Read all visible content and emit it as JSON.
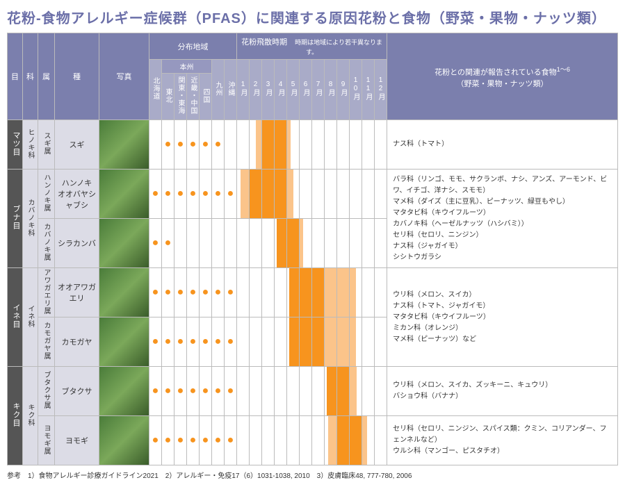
{
  "title": "花粉-食物アレルギー症候群（PFAS）に関連する原因花粉と食物（野菜・果物・ナッツ類）",
  "headers": {
    "moku": "目",
    "ka": "科",
    "zoku": "属",
    "shu": "種",
    "photo": "写真",
    "region": "分布地域",
    "honshu": "本州",
    "season": "花粉飛散時期",
    "seasonNote": "時期は地域により若干異なります。",
    "food": "花粉との関連が報告されている食物",
    "foodSub": "（野菜・果物・ナッツ類）"
  },
  "regions": [
    "北海道",
    "東北",
    "関東・東海",
    "近畿・中国",
    "四国",
    "九州",
    "沖縄"
  ],
  "months": [
    "1月",
    "2月",
    "3月",
    "4月",
    "5月",
    "6月",
    "7月",
    "8月",
    "9月",
    "10月",
    "11月",
    "12月"
  ],
  "colors": {
    "peak": "#f7941e",
    "light": "#fbc48a",
    "hdr1": "#7b7fad",
    "hdr2": "#a9abc8"
  },
  "groups": [
    {
      "moku": "マツ目",
      "ka": "ヒノキ科",
      "rows": [
        {
          "zoku": "スギ属",
          "shu": "スギ",
          "dots": [
            0,
            1,
            1,
            1,
            1,
            1,
            0
          ],
          "cal": [
            null,
            {
              "c": "light",
              "s": 50,
              "e": 100
            },
            {
              "c": "peak",
              "s": 0,
              "e": 100
            },
            {
              "c": "peak",
              "s": 0,
              "e": 100
            },
            {
              "c": "light",
              "s": 0,
              "e": 30
            },
            null,
            null,
            null,
            null,
            null,
            null,
            null
          ]
        }
      ],
      "food": "ナス科（トマト）"
    },
    {
      "moku": "ブナ目",
      "ka": "カバノキ科",
      "rows": [
        {
          "zoku": "ハンノキ属",
          "shu": "ハンノキ\nオオバヤシャブシ",
          "dots": [
            1,
            1,
            1,
            1,
            1,
            1,
            1
          ],
          "cal": [
            {
              "c": "light",
              "s": 30,
              "e": 100
            },
            {
              "c": "peak",
              "s": 0,
              "e": 100
            },
            {
              "c": "peak",
              "s": 0,
              "e": 100
            },
            {
              "c": "peak",
              "s": 0,
              "e": 100
            },
            {
              "c": "light",
              "s": 0,
              "e": 50
            },
            null,
            null,
            null,
            null,
            null,
            null,
            null
          ]
        },
        {
          "zoku": "カバノキ属",
          "shu": "シラカンバ",
          "dots": [
            1,
            1,
            0,
            0,
            0,
            0,
            0
          ],
          "cal": [
            null,
            null,
            null,
            {
              "c": "peak",
              "s": 20,
              "e": 100
            },
            {
              "c": "peak",
              "s": 0,
              "e": 100
            },
            {
              "c": "light",
              "s": 0,
              "e": 30
            },
            null,
            null,
            null,
            null,
            null,
            null
          ]
        }
      ],
      "food": "バラ科（リンゴ、モモ、サクランボ、ナシ、アンズ、アーモンド、ビワ、イチゴ、洋ナシ、スモモ）\nマメ科（ダイズ（主に豆乳）、ピーナッツ、緑豆もやし）\nマタタビ科（キウイフルーツ）\nカバノキ科（ヘーゼルナッツ（ハシバミ））\nセリ科（セロリ、ニンジン）\nナス科（ジャガイモ）\nシシトウガラシ"
    },
    {
      "moku": "イネ目",
      "ka": "イネ科",
      "rows": [
        {
          "zoku": "アワガエリ属",
          "shu": "オオアワガエリ",
          "dots": [
            1,
            1,
            1,
            1,
            1,
            1,
            1
          ],
          "cal": [
            null,
            null,
            null,
            null,
            {
              "c": "peak",
              "s": 20,
              "e": 100
            },
            {
              "c": "peak",
              "s": 0,
              "e": 100
            },
            {
              "c": "peak",
              "s": 0,
              "e": 100
            },
            {
              "c": "light",
              "s": 0,
              "e": 100
            },
            {
              "c": "light",
              "s": 0,
              "e": 100
            },
            {
              "c": "light",
              "s": 0,
              "e": 50
            },
            null,
            null
          ]
        },
        {
          "zoku": "カモガヤ属",
          "shu": "カモガヤ",
          "dots": [
            1,
            1,
            1,
            1,
            1,
            1,
            1
          ],
          "cal": [
            null,
            null,
            null,
            null,
            {
              "c": "peak",
              "s": 20,
              "e": 100
            },
            {
              "c": "peak",
              "s": 0,
              "e": 100
            },
            {
              "c": "peak",
              "s": 0,
              "e": 100
            },
            {
              "c": "light",
              "s": 0,
              "e": 100
            },
            {
              "c": "light",
              "s": 0,
              "e": 100
            },
            {
              "c": "light",
              "s": 0,
              "e": 50
            },
            null,
            null
          ]
        }
      ],
      "food": "ウリ科（メロン、スイカ）\nナス科（トマト、ジャガイモ）\nマタタビ科（キウイフルーツ）\nミカン科（オレンジ）\nマメ科（ピーナッツ）など"
    },
    {
      "moku": "キク目",
      "ka": "キク科",
      "rows": [
        {
          "zoku": "ブタクサ属",
          "shu": "ブタクサ",
          "dots": [
            1,
            1,
            1,
            1,
            1,
            1,
            1
          ],
          "cal": [
            null,
            null,
            null,
            null,
            null,
            null,
            null,
            {
              "c": "peak",
              "s": 20,
              "e": 100
            },
            {
              "c": "peak",
              "s": 0,
              "e": 100
            },
            {
              "c": "light",
              "s": 0,
              "e": 60
            },
            null,
            null
          ]
        },
        {
          "zoku": "ヨモギ属",
          "shu": "ヨモギ",
          "dots": [
            1,
            1,
            1,
            1,
            1,
            1,
            1
          ],
          "cal": [
            null,
            null,
            null,
            null,
            null,
            null,
            null,
            {
              "c": "light",
              "s": 30,
              "e": 100
            },
            {
              "c": "peak",
              "s": 0,
              "e": 100
            },
            {
              "c": "peak",
              "s": 0,
              "e": 100
            },
            {
              "c": "light",
              "s": 0,
              "e": 40
            },
            null
          ]
        }
      ],
      "food2": [
        "ウリ科（メロン、スイカ、ズッキーニ、キュウリ）\nバショウ科（バナナ）",
        "セリ科（セロリ、ニンジン、スパイス類：クミン、コリアンダー、フェンネルなど）\nウルシ科（マンゴー、ピスタチオ）"
      ]
    }
  ],
  "refs": "参考　1）食物アレルギー診療ガイドライン2021　2）アレルギー・免疫17（6）1031-1038, 2010　3）皮膚臨床48, 777-780, 2006"
}
